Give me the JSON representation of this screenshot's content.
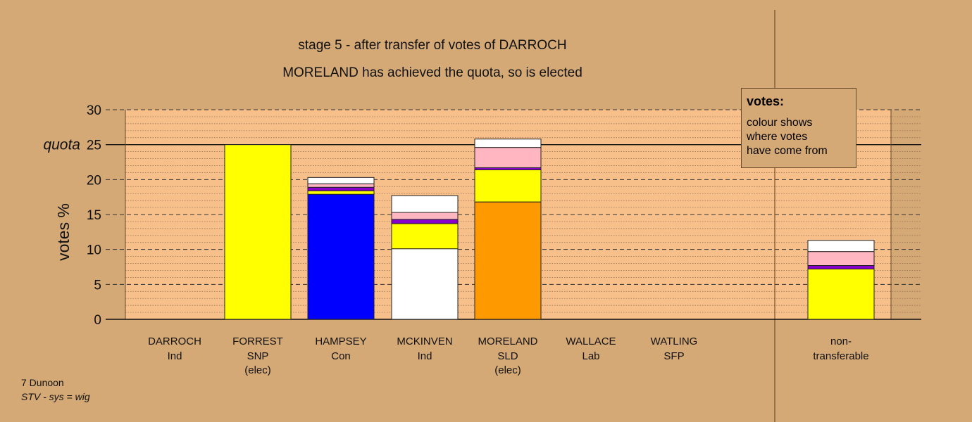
{
  "title_line1": "stage 5 - after transfer of votes of DARROCH",
  "title_line2": "MORELAND has achieved the quota, so is elected",
  "footer": {
    "line1": "7 Dunoon",
    "line2": "STV - sys = wig"
  },
  "legend": {
    "title": "votes:",
    "text": "colour shows\nwhere votes\nhave come from"
  },
  "colors": {
    "background": "#d4a976",
    "plot_area": "#f7c08a",
    "Ind": "#ffffff",
    "SNP": "#ffff00",
    "Con": "#0000ff",
    "SLD": "#ff9900",
    "Lab": "#ff0000",
    "SFP": "#8800cc",
    "pink": "#ffb6c1",
    "purple": "#8800cc"
  },
  "chart_data": {
    "type": "bar",
    "stacked": true,
    "ylabel": "votes %",
    "ylim": [
      0,
      30
    ],
    "yticks": [
      "0",
      "5",
      "10",
      "15",
      "20",
      "25",
      "30"
    ],
    "quota": {
      "label": "quota",
      "value": 25
    },
    "grid": true,
    "legend_position": "top-right",
    "candidates": [
      {
        "name": "DARROCH",
        "party": "Ind",
        "note": "",
        "segments": []
      },
      {
        "name": "FORREST",
        "party": "SNP",
        "note": "(elec)",
        "segments": [
          {
            "source": "SNP",
            "value": 25.0
          }
        ]
      },
      {
        "name": "HAMPSEY",
        "party": "Con",
        "note": "",
        "segments": [
          {
            "source": "Con",
            "value": 17.9
          },
          {
            "source": "SNP",
            "value": 0.5
          },
          {
            "source": "purple",
            "value": 0.5
          },
          {
            "source": "pink",
            "value": 0.5
          },
          {
            "source": "Ind",
            "value": 0.9
          }
        ]
      },
      {
        "name": "MCKINVEN",
        "party": "Ind",
        "note": "",
        "segments": [
          {
            "source": "Ind",
            "value": 10.1
          },
          {
            "source": "SNP",
            "value": 3.6
          },
          {
            "source": "purple",
            "value": 0.6
          },
          {
            "source": "pink",
            "value": 1.0
          },
          {
            "source": "Ind",
            "value": 2.4
          }
        ]
      },
      {
        "name": "MORELAND",
        "party": "SLD",
        "note": "(elec)",
        "segments": [
          {
            "source": "SLD",
            "value": 16.8
          },
          {
            "source": "SNP",
            "value": 4.6
          },
          {
            "source": "purple",
            "value": 0.3
          },
          {
            "source": "pink",
            "value": 2.9
          },
          {
            "source": "Ind",
            "value": 1.2
          }
        ]
      },
      {
        "name": "WALLACE",
        "party": "Lab",
        "note": "",
        "segments": []
      },
      {
        "name": "WATLING",
        "party": "SFP",
        "note": "",
        "segments": []
      }
    ],
    "non_transferable": {
      "label_line1": "non-",
      "label_line2": "transferable",
      "segments": [
        {
          "source": "SNP",
          "value": 7.2
        },
        {
          "source": "purple",
          "value": 0.5
        },
        {
          "source": "pink",
          "value": 2.0
        },
        {
          "source": "Ind",
          "value": 1.6
        }
      ]
    }
  }
}
